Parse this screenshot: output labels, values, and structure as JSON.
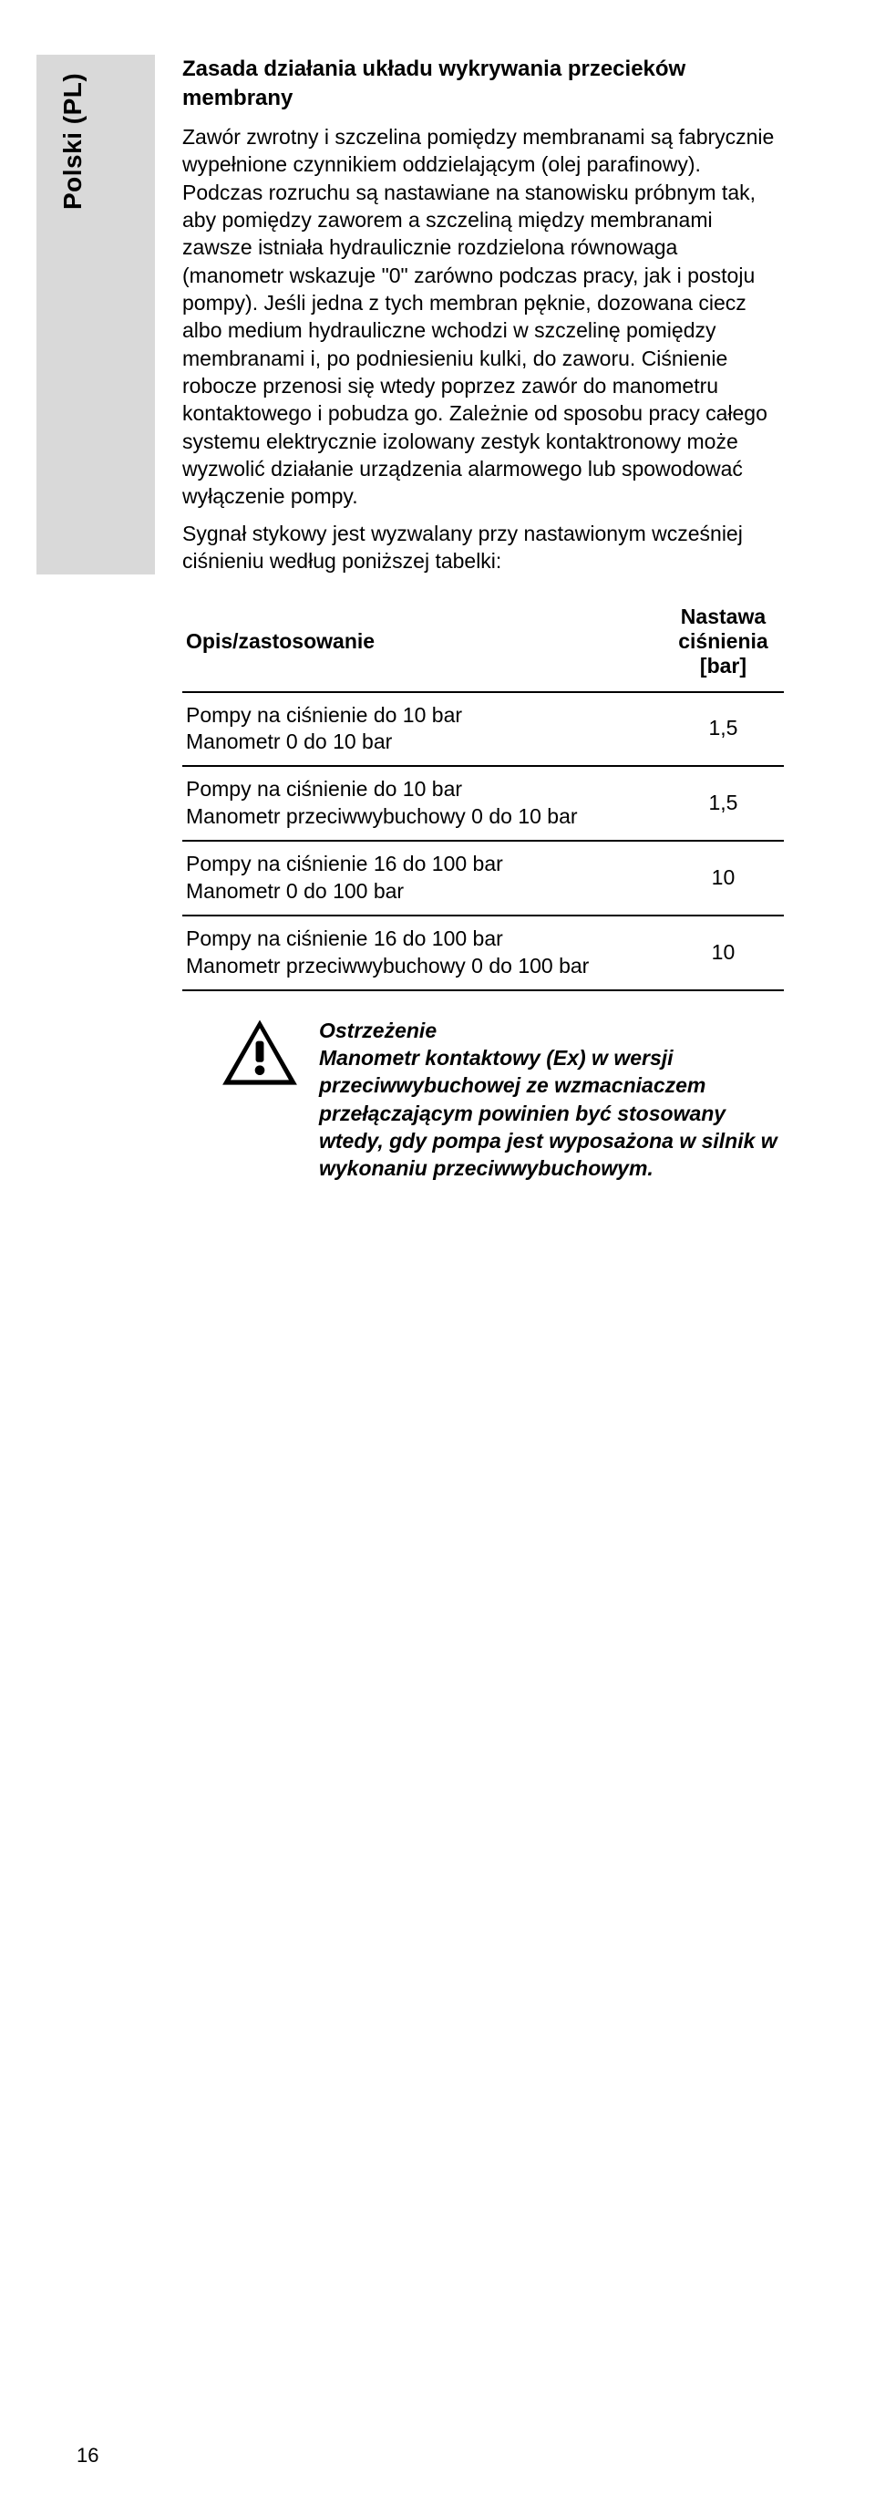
{
  "sideTab": {
    "label": "Polski (PL)"
  },
  "section": {
    "title": "Zasada działania układu wykrywania przecieków membrany",
    "paragraphs": [
      "Zawór zwrotny i szczelina pomiędzy membranami są fabrycznie wypełnione czynnikiem oddzielającym (olej parafinowy). Podczas rozruchu są nastawiane na stanowisku próbnym tak, aby pomiędzy zaworem a szczeliną między membranami zawsze istniała hydraulicznie rozdzielona równowaga (manometr wskazuje \"0\" zarówno podczas pracy, jak i postoju pompy). Jeśli jedna z tych membran pęknie, dozowana ciecz albo medium hydrauliczne wchodzi w szczelinę pomiędzy membranami i, po podniesieniu kulki, do zaworu. Ciśnienie robocze przenosi się wtedy poprzez zawór do manometru kontaktowego i pobudza go. Zależnie od sposobu pracy całego systemu elektrycznie izolowany zestyk kontaktronowy może wyzwolić działanie urządzenia alarmowego lub spowodować wyłączenie pompy.",
      "Sygnał stykowy jest wyzwalany przy nastawionym wcześniej ciśnieniu według poniższej tabelki:"
    ]
  },
  "table": {
    "headers": {
      "desc": "Opis/zastosowanie",
      "value": "Nastawa ciśnienia [bar]"
    },
    "rows": [
      {
        "desc": "Pompy na ciśnienie do 10 bar\nManometr 0 do 10 bar",
        "value": "1,5"
      },
      {
        "desc": "Pompy na ciśnienie do 10 bar\nManometr przeciwwybuchowy 0 do 10 bar",
        "value": "1,5"
      },
      {
        "desc": "Pompy na ciśnienie 16 do 100 bar\nManometr 0 do 100 bar",
        "value": "10"
      },
      {
        "desc": "Pompy na ciśnienie 16 do 100 bar\nManometr przeciwwybuchowy 0 do 100 bar",
        "value": "10"
      }
    ]
  },
  "warning": {
    "heading": "Ostrzeżenie",
    "body": "Manometr kontaktowy (Ex) w wersji przeciwwybuchowej ze wzmacniaczem przełączającym powinien być stosowany wtedy, gdy pompa jest wyposażona w silnik w wykonaniu przeciwwybuchowym."
  },
  "pageNumber": "16",
  "colors": {
    "tabBg": "#d9d9d9",
    "text": "#000000",
    "rule": "#000000",
    "pageBg": "#ffffff"
  }
}
